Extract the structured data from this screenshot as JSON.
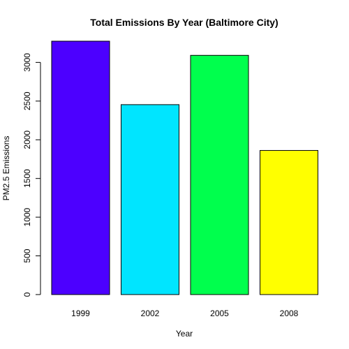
{
  "chart_data": {
    "type": "bar",
    "title": "Total Emissions By Year (Baltimore City)",
    "xlabel": "Year",
    "ylabel": "PM2.5 Emissions",
    "categories": [
      "1999",
      "2002",
      "2005",
      "2008"
    ],
    "values": [
      3274,
      2454,
      3091,
      1862
    ],
    "colors": [
      "#4c00ff",
      "#00e5ff",
      "#00ff4d",
      "#ffff00"
    ],
    "ylim": [
      0,
      3274
    ],
    "yticks": [
      0,
      500,
      1000,
      1500,
      2000,
      2500,
      3000
    ],
    "grid": false,
    "legend": "none"
  }
}
